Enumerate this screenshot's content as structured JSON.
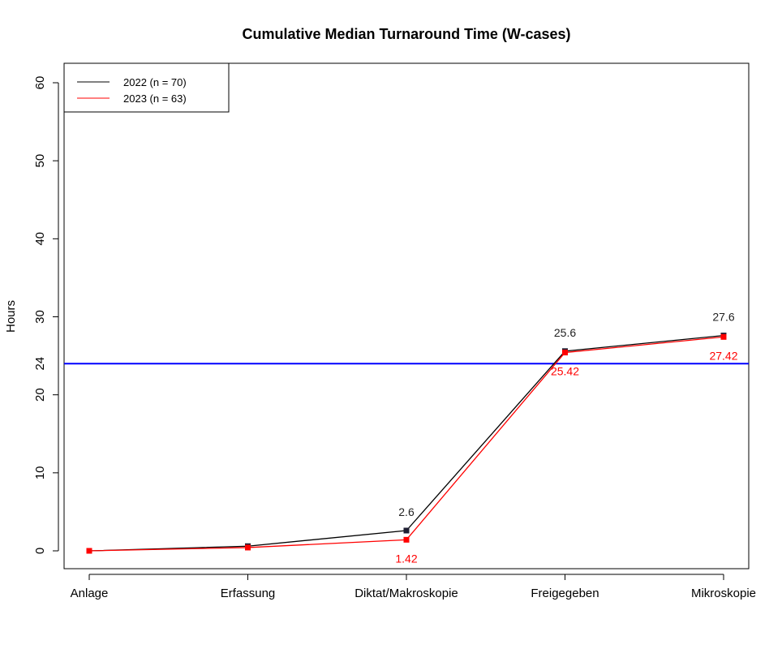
{
  "chart_data": {
    "type": "line",
    "title": "Cumulative Median Turnaround Time (W-cases)",
    "xlabel": "",
    "ylabel": "Hours",
    "categories": [
      "Anlage",
      "Erfassung",
      "Diktat/Makroskopie",
      "Freigegeben",
      "Mikroskopie"
    ],
    "ylim": [
      0,
      60
    ],
    "yticks": [
      0,
      10,
      20,
      30,
      40,
      50,
      60
    ],
    "grid": false,
    "legend_position": "top-left",
    "series": [
      {
        "name": "2022 (n = 70)",
        "color": "#000000",
        "marker_color": "#1f1f33",
        "values": [
          0,
          0.6,
          2.6,
          25.6,
          27.6
        ],
        "labels": [
          "",
          "",
          "2.6",
          "25.6",
          "27.6"
        ]
      },
      {
        "name": "2023 (n = 63)",
        "color": "#ff0000",
        "marker_color": "#ff0000",
        "values": [
          0,
          0.42,
          1.42,
          25.42,
          27.42
        ],
        "labels": [
          "",
          "",
          "1.42",
          "25.42",
          "27.42"
        ]
      }
    ],
    "reference_line": {
      "value": 24,
      "label": "24",
      "color": "#0000ff"
    }
  }
}
